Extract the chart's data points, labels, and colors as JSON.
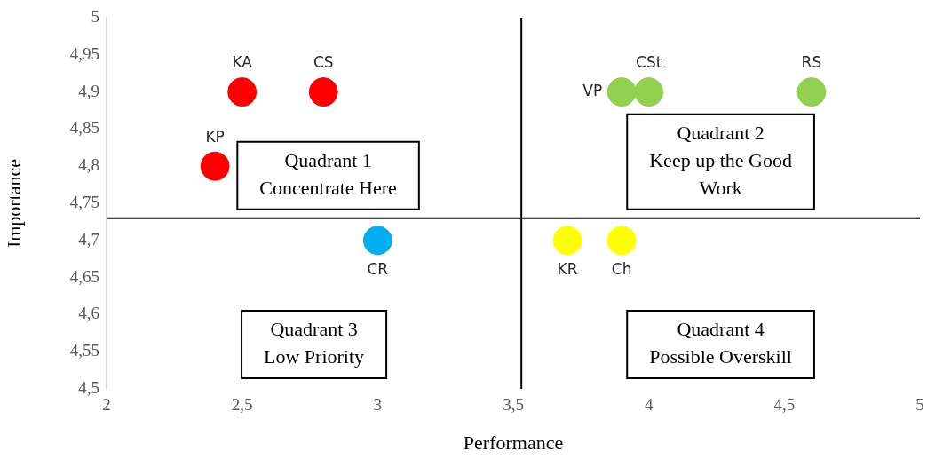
{
  "chart_data": {
    "type": "scatter",
    "xlabel": "Performance",
    "ylabel": "Importance",
    "x": [
      2.5,
      2.8,
      2.4,
      3.0,
      3.7,
      3.9,
      3.9,
      4.0,
      4.6
    ],
    "values": [
      4.9,
      4.9,
      4.8,
      4.7,
      4.7,
      4.7,
      4.9,
      4.9,
      4.9
    ],
    "colors": [
      "#ff0000",
      "#ff0000",
      "#ff0000",
      "#00b0f0",
      "#ffff00",
      "#ffff00",
      "#92d050",
      "#92d050",
      "#92d050"
    ],
    "marker": "circle",
    "grid": false,
    "legend": false,
    "xlim": [
      2,
      5
    ],
    "xticks": [
      2,
      {
        "value": 2.5,
        "label": "2,5"
      },
      3,
      {
        "value": 3.5,
        "label": "3,5"
      },
      4,
      {
        "value": 4.5,
        "label": "4,5"
      },
      5
    ],
    "ylim": [
      4.5,
      5
    ],
    "yticks": [
      {
        "value": 4.5,
        "label": "4,5"
      },
      {
        "value": 4.55,
        "label": "4,55"
      },
      {
        "value": 4.6,
        "label": "4,6"
      },
      {
        "value": 4.65,
        "label": "4,65"
      },
      {
        "value": 4.7,
        "label": "4,7"
      },
      {
        "value": 4.75,
        "label": "4,75"
      },
      {
        "value": 4.8,
        "label": "4,8"
      },
      {
        "value": 4.85,
        "label": "4,85"
      },
      {
        "value": 4.9,
        "label": "4,9"
      },
      {
        "value": 4.95,
        "label": "4,95"
      },
      5
    ],
    "ref_lines": [
      {
        "axis": "x",
        "value": 3.53,
        "color": "#000000"
      },
      {
        "axis": "y",
        "value": 4.73,
        "color": "#000000"
      }
    ],
    "annotations": [
      {
        "text": "KA",
        "x": 2.5,
        "y": 4.9
      },
      {
        "text": "CS",
        "x": 2.8,
        "y": 4.9
      },
      {
        "text": "KP",
        "x": 2.4,
        "y": 4.8
      },
      {
        "text": "CR",
        "x": 3.0,
        "y": 4.7
      },
      {
        "text": "KR",
        "x": 3.7,
        "y": 4.7
      },
      {
        "text": "Ch",
        "x": 3.9,
        "y": 4.7
      },
      {
        "text": "VP",
        "x": 3.9,
        "y": 4.9
      },
      {
        "text": "CSt",
        "x": 4.0,
        "y": 4.9
      },
      {
        "text": "RS",
        "x": 4.6,
        "y": 4.9
      },
      "Quadrant 1\nConcentrate Here",
      "Quadrant 2\nKeep up the Good\nWork",
      "Quadrant 3\nLow Priority",
      "Quadrant 4\nPossible Overskill"
    ]
  }
}
